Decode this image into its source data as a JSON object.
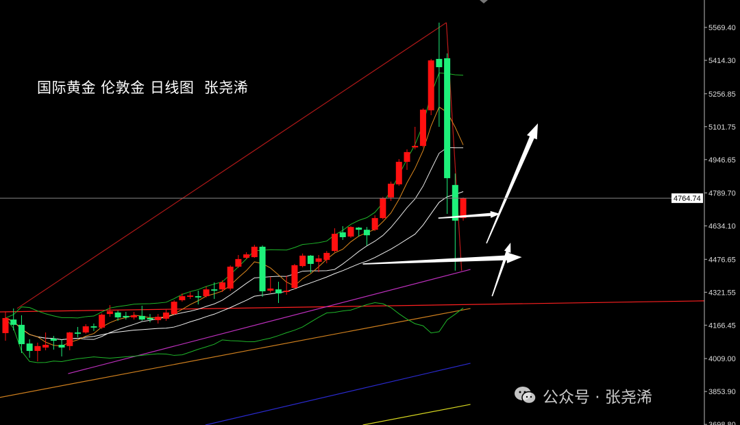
{
  "title": "国际黄金 伦敦金 日线图  张尧浠",
  "watermark": {
    "text": "公众号 · 张尧浠",
    "icon": "wechat-icon"
  },
  "colors": {
    "up": "#ff1010",
    "down": "#1ef07a",
    "background": "#000000",
    "axis": "#cccccc",
    "last_price_box": "#ffffff"
  },
  "chart_data": {
    "type": "candlestick",
    "title": "国际黄金 伦敦金 日线图  张尧浠",
    "ylim": [
      3696,
      5698.6
    ],
    "y_ticks": [
      "5569.40",
      "5414.30",
      "5256.85",
      "5101.75",
      "4946.65",
      "4789.70",
      "4634.10",
      "4476.65",
      "4321.55",
      "4166.45",
      "4009.00",
      "3853.90",
      "3698.80"
    ],
    "last_price": 4764.74,
    "grid": false,
    "candles": [
      [
        4129,
        4229,
        4093,
        4200
      ],
      [
        4193,
        4245,
        4142,
        4168
      ],
      [
        4168,
        4213,
        4035,
        4077
      ],
      [
        4080,
        4100,
        4013,
        4045
      ],
      [
        4045,
        4084,
        3996,
        4068
      ],
      [
        4061,
        4132,
        4048,
        4074
      ],
      [
        4103,
        4116,
        4051,
        4093
      ],
      [
        4074,
        4097,
        4019,
        4061
      ],
      [
        4068,
        4135,
        4048,
        4132
      ],
      [
        4132,
        4158,
        4109,
        4126
      ],
      [
        4132,
        4171,
        4126,
        4161
      ],
      [
        4161,
        4174,
        4139,
        4155
      ],
      [
        4155,
        4222,
        4148,
        4216
      ],
      [
        4219,
        4261,
        4206,
        4232
      ],
      [
        4226,
        4235,
        4187,
        4203
      ],
      [
        4210,
        4229,
        4193,
        4203
      ],
      [
        4203,
        4229,
        4193,
        4213
      ],
      [
        4210,
        4258,
        4187,
        4193
      ],
      [
        4200,
        4219,
        4180,
        4193
      ],
      [
        4190,
        4219,
        4174,
        4206
      ],
      [
        4197,
        4239,
        4187,
        4226
      ],
      [
        4219,
        4284,
        4213,
        4277
      ],
      [
        4284,
        4316,
        4277,
        4303
      ],
      [
        4300,
        4322,
        4290,
        4306
      ],
      [
        4303,
        4329,
        4264,
        4297
      ],
      [
        4303,
        4349,
        4297,
        4335
      ],
      [
        4335,
        4368,
        4290,
        4329
      ],
      [
        4335,
        4378,
        4323,
        4368
      ],
      [
        4339,
        4448,
        4329,
        4442
      ],
      [
        4442,
        4497,
        4436,
        4478
      ],
      [
        4484,
        4510,
        4478,
        4500
      ],
      [
        4487,
        4545,
        4484,
        4536
      ],
      [
        4536,
        4542,
        4300,
        4326
      ],
      [
        4329,
        4394,
        4319,
        4339
      ],
      [
        4335,
        4371,
        4271,
        4316
      ],
      [
        4323,
        4400,
        4310,
        4329
      ],
      [
        4342,
        4455,
        4336,
        4449
      ],
      [
        4445,
        4504,
        4439,
        4494
      ],
      [
        4494,
        4497,
        4413,
        4455
      ],
      [
        4465,
        4497,
        4416,
        4481
      ],
      [
        4474,
        4516,
        4458,
        4507
      ],
      [
        4516,
        4623,
        4510,
        4597
      ],
      [
        4604,
        4633,
        4568,
        4581
      ],
      [
        4584,
        4633,
        4578,
        4629
      ],
      [
        4626,
        4629,
        4584,
        4616
      ],
      [
        4616,
        4629,
        4542,
        4590
      ],
      [
        4616,
        4684,
        4610,
        4671
      ],
      [
        4671,
        4771,
        4665,
        4765
      ],
      [
        4768,
        4843,
        4752,
        4833
      ],
      [
        4830,
        4949,
        4823,
        4936
      ],
      [
        4936,
        4995,
        4898,
        4982
      ],
      [
        5004,
        5101,
        4995,
        5011
      ],
      [
        5011,
        5188,
        5004,
        5182
      ],
      [
        5179,
        5421,
        5156,
        5414
      ],
      [
        5421,
        5592,
        5101,
        5382
      ],
      [
        5424,
        5447,
        4691,
        4859
      ],
      [
        4827,
        4881,
        4423,
        4659
      ],
      [
        4671,
        4768,
        4659,
        4764.74
      ]
    ],
    "indicators": {
      "ma_fast": {
        "period": 5,
        "color": "#e08a1e"
      },
      "ma_mid": {
        "period": 10,
        "color": "#e8e8e8"
      },
      "ma_slow": {
        "period": 20,
        "color": "#f4f4f4"
      },
      "bollinger": {
        "period": 20,
        "k": 2,
        "color": "#1fb82a"
      }
    },
    "overlay_lines": [
      {
        "color": "#b01818",
        "from": [
          1.45,
          4245
        ],
        "to": [
          54.9,
          5592
        ]
      },
      {
        "color": "#c01a1a",
        "from": [
          54.9,
          5592
        ],
        "to": [
          56.8,
          4423
        ]
      },
      {
        "color": "#ff2020",
        "from": [
          -0.7,
          4229
        ],
        "to": [
          87,
          4281
        ]
      },
      {
        "color": "#c030c0",
        "from": [
          7.8,
          3938
        ],
        "to": [
          57.9,
          4429
        ]
      },
      {
        "color": "#d0801e",
        "from": [
          -0.7,
          3826
        ],
        "to": [
          57.9,
          4245
        ]
      },
      {
        "color": "#2a2ad0",
        "from": [
          24.9,
          3696
        ],
        "to": [
          57.9,
          3987
        ]
      },
      {
        "color": "#d8d820",
        "from": [
          44.5,
          3696
        ],
        "to": [
          57.9,
          3793
        ]
      }
    ],
    "arrows": [
      {
        "from": [
          59.9,
          4552
        ],
        "to": [
          66.3,
          5117
        ]
      },
      {
        "from": [
          53.9,
          4671
        ],
        "to": [
          61.6,
          4691
        ]
      },
      {
        "from": [
          44.5,
          4455
        ],
        "to": [
          64.3,
          4487
        ]
      },
      {
        "from": [
          60.6,
          4303
        ],
        "to": [
          62.9,
          4555
        ]
      }
    ]
  }
}
